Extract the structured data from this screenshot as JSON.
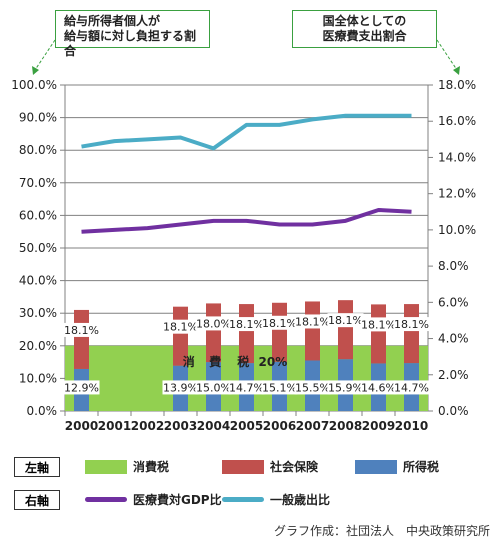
{
  "callouts": {
    "left": "給与所得者個人が 給与額に対し負担する割合",
    "right_line1": "国全体としての",
    "right_line2": "医療費支出割合",
    "left_line1": "給与所得者個人が",
    "left_line2": "給与額に対し負担する割合"
  },
  "legend": {
    "left_axis_tag": "左軸",
    "right_axis_tag": "右軸",
    "consumption_tax": "消費税",
    "social_insurance": "社会保険",
    "income_tax": "所得税",
    "medical_gdp": "医療費対GDP比",
    "general_expenditure": "一般歳出比"
  },
  "credit": "グラフ作成：社団法人　中央政策研究所",
  "colors": {
    "consumption_tax": "#92d050",
    "social_insurance": "#c0504d",
    "income_tax": "#4f81bd",
    "medical_gdp": "#7030a0",
    "general_expenditure": "#4bacc6"
  },
  "chart_data": {
    "type": "bar",
    "categories": [
      "2000",
      "2001",
      "2002",
      "2003",
      "2004",
      "2005",
      "2006",
      "2007",
      "2008",
      "2009",
      "2010"
    ],
    "left_axis": {
      "ylim": [
        0,
        100
      ],
      "ticks": [
        "0.0%",
        "10.0%",
        "20.0%",
        "30.0%",
        "40.0%",
        "50.0%",
        "60.0%",
        "70.0%",
        "80.0%",
        "90.0%",
        "100.0%"
      ]
    },
    "right_axis": {
      "ylim": [
        0,
        18
      ],
      "ticks": [
        "0.0%",
        "2.0%",
        "4.0%",
        "6.0%",
        "8.0%",
        "10.0%",
        "12.0%",
        "14.0%",
        "16.0%",
        "18.0%"
      ]
    },
    "consumption_tax_band": {
      "value": 20,
      "label_chars": [
        "消",
        "費",
        "税",
        "20%"
      ]
    },
    "series": [
      {
        "name": "所得税",
        "axis": "left",
        "kind": "bar",
        "values": [
          12.9,
          null,
          null,
          13.9,
          15.0,
          14.7,
          15.1,
          15.5,
          15.9,
          14.6,
          14.7
        ],
        "labels": [
          "12.9%",
          "",
          "",
          "13.9%",
          "15.0%",
          "14.7%",
          "15.1%",
          "15.5%",
          "15.9%",
          "14.6%",
          "14.7%"
        ]
      },
      {
        "name": "社会保険",
        "axis": "left",
        "kind": "bar",
        "values": [
          18.1,
          null,
          null,
          18.1,
          18.0,
          18.1,
          18.1,
          18.1,
          18.1,
          18.1,
          18.1
        ],
        "labels": [
          "18.1%",
          "",
          "",
          "18.1%",
          "18.0%",
          "18.1%",
          "18.1%",
          "18.1%",
          "18.1%",
          "18.1%",
          "18.1%"
        ]
      },
      {
        "name": "医療費対GDP比",
        "axis": "right",
        "kind": "line",
        "values": [
          9.9,
          10.0,
          10.1,
          10.3,
          10.5,
          10.5,
          10.3,
          10.3,
          10.5,
          11.1,
          11.0
        ]
      },
      {
        "name": "一般歳出比",
        "axis": "right",
        "kind": "line",
        "values": [
          14.6,
          14.9,
          15.0,
          15.1,
          14.5,
          15.8,
          15.8,
          16.1,
          16.3,
          16.3,
          16.3
        ]
      }
    ]
  }
}
